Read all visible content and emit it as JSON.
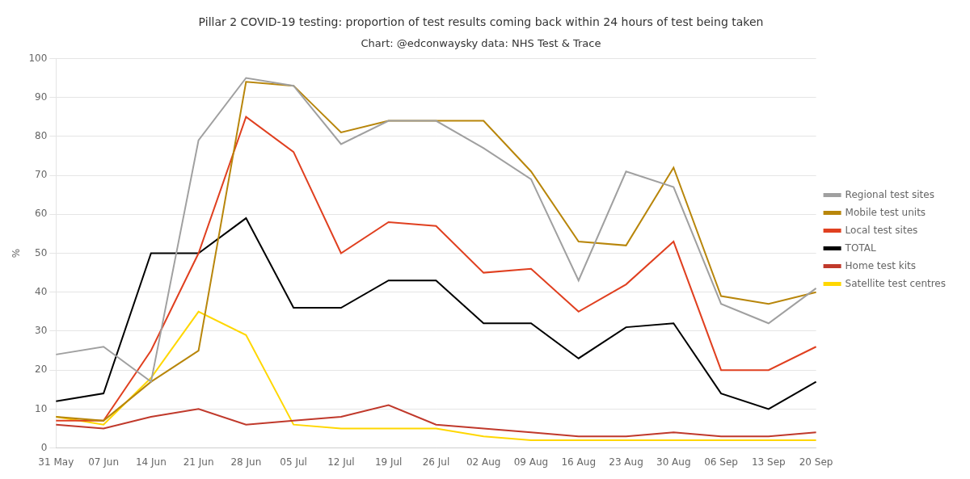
{
  "chart_data": {
    "type": "line",
    "title": "Pillar 2 COVID-19 testing: proportion of test results coming back within 24 hours of test being taken",
    "subtitle": "Chart: @edconwaysky data: NHS Test & Trace",
    "y_label": "%",
    "categories": [
      "31 May",
      "07 Jun",
      "14 Jun",
      "21 Jun",
      "28 Jun",
      "05 Jul",
      "12 Jul",
      "19 Jul",
      "26 Jul",
      "02 Aug",
      "09 Aug",
      "16 Aug",
      "23 Aug",
      "30 Aug",
      "06 Sep",
      "13 Sep",
      "20 Sep"
    ],
    "series": [
      {
        "name": "Regional test sites",
        "color": "#a0a0a0",
        "values": [
          24,
          26,
          17,
          79,
          95,
          93,
          78,
          84,
          84,
          77,
          69,
          43,
          71,
          67,
          37,
          32,
          41
        ]
      },
      {
        "name": "Mobile test units",
        "color": "#b8860b",
        "values": [
          8,
          7,
          17,
          25,
          94,
          93,
          81,
          84,
          84,
          84,
          71,
          53,
          52,
          72,
          39,
          37,
          40
        ]
      },
      {
        "name": "Local test sites",
        "color": "#e04020",
        "values": [
          7,
          7,
          25,
          50,
          85,
          76,
          50,
          58,
          57,
          45,
          46,
          35,
          42,
          53,
          20,
          20,
          26
        ]
      },
      {
        "name": "TOTAL",
        "color": "#000000",
        "values": [
          12,
          14,
          50,
          50,
          59,
          36,
          36,
          43,
          43,
          32,
          32,
          23,
          31,
          32,
          14,
          10,
          17
        ]
      },
      {
        "name": "Home test kits",
        "color": "#c0392b",
        "values": [
          6,
          5,
          8,
          10,
          6,
          7,
          8,
          11,
          6,
          5,
          4,
          3,
          3,
          4,
          3,
          3,
          4
        ]
      },
      {
        "name": "Satellite test centres",
        "color": "#ffd700",
        "values": [
          8,
          6,
          18,
          35,
          29,
          6,
          5,
          5,
          5,
          3,
          2,
          2,
          2,
          2,
          2,
          2,
          2
        ]
      }
    ],
    "ylim": [
      0,
      100
    ],
    "yticks": [
      0,
      10,
      20,
      30,
      40,
      50,
      60,
      70,
      80,
      90,
      100
    ],
    "grid": "y",
    "legend": "right"
  }
}
